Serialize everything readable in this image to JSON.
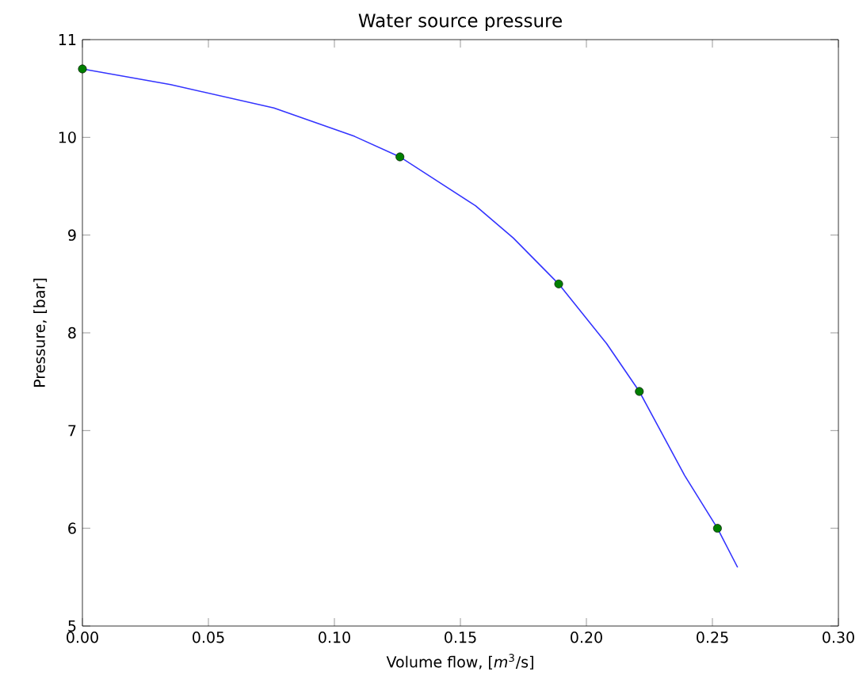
{
  "chart_data": {
    "type": "line",
    "title": "Water source pressure",
    "xlabel": "Volume flow, [*m*$^{3}$/s]",
    "ylabel": "Pressure, [bar]",
    "series": [
      {
        "color": "#3333ff",
        "marker": "none",
        "x": [
          0,
          0.035,
          0.076,
          0.108,
          0.126,
          0.156,
          0.171,
          0.189,
          0.208,
          0.221,
          0.239,
          0.252,
          0.26
        ],
        "values": [
          10.7,
          10.54,
          10.3,
          10.01,
          9.8,
          9.3,
          8.97,
          8.5,
          7.89,
          7.4,
          6.54,
          6.0,
          5.6
        ]
      },
      {
        "type": "scatter",
        "color": "#007f00",
        "marker": "circle",
        "x": [
          0,
          0.126,
          0.189,
          0.221,
          0.252
        ],
        "values": [
          10.7,
          9.8,
          8.5,
          7.4,
          6.0
        ]
      }
    ],
    "xlim": [
      0,
      0.3
    ],
    "ylim": [
      5,
      11
    ],
    "xticks": [
      {
        "value": 0,
        "label": "0.00"
      },
      0.05,
      {
        "value": 0.1,
        "label": "0.10"
      },
      0.15,
      {
        "value": 0.2,
        "label": "0.20"
      },
      0.25,
      {
        "value": 0.3,
        "label": "0.30"
      }
    ],
    "yticks": [
      5,
      6,
      7,
      8,
      9,
      10,
      11
    ],
    "grid": false
  }
}
